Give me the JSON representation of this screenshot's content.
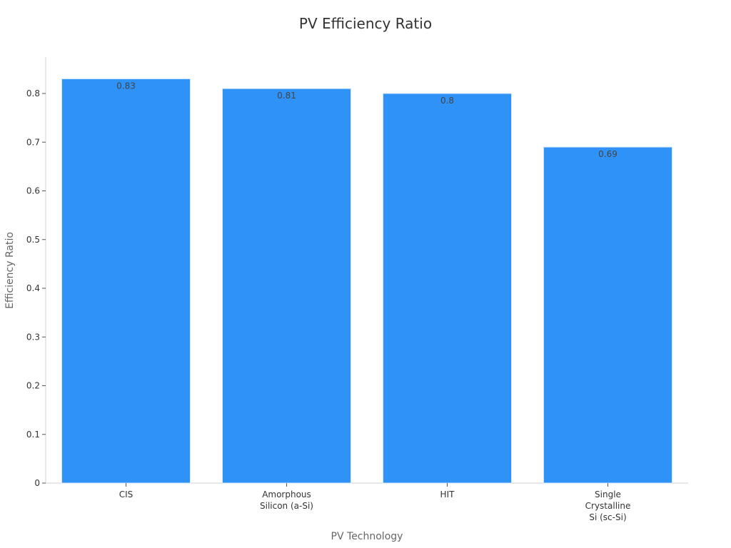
{
  "chart_data": {
    "type": "bar",
    "title": "PV Efficiency Ratio",
    "xlabel": "PV Technology",
    "ylabel": "Efficiency Ratio",
    "categories": [
      [
        "CIS"
      ],
      [
        "Amorphous",
        "Silicon (a-Si)"
      ],
      [
        "HIT"
      ],
      [
        "Single",
        "Crystalline",
        "Si (sc-Si)"
      ]
    ],
    "values": [
      0.83,
      0.81,
      0.8,
      0.69
    ],
    "value_labels": [
      "0.83",
      "0.81",
      "0.8",
      "0.69"
    ],
    "yticks": [
      "0",
      "0.1",
      "0.2",
      "0.3",
      "0.4",
      "0.5",
      "0.6",
      "0.7",
      "0.8"
    ],
    "ylim": [
      0,
      0.875
    ],
    "grid": false,
    "legend": "none",
    "bar_color": "#2f92f7",
    "bar_edge_color": "#d6e9fc"
  }
}
